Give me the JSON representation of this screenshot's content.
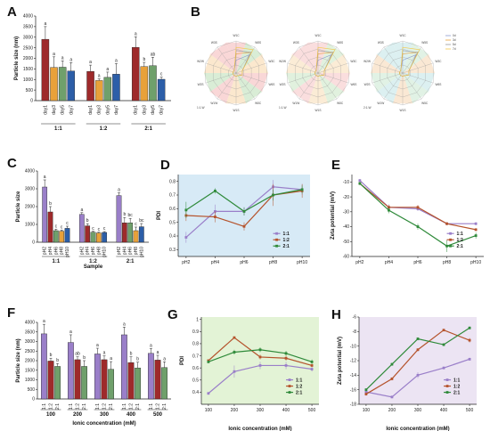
{
  "panels": {
    "A": "A",
    "B": "B",
    "C": "C",
    "D": "D",
    "E": "E",
    "F": "F",
    "G": "G",
    "H": "H"
  },
  "colors": {
    "red": "#9e2a2b",
    "orange": "#e8a13a",
    "green": "#6fa06b",
    "blue": "#2c5ea8",
    "purple": "#9a7fc9",
    "brown": "#b5532c",
    "dgreen": "#2f8a3a"
  },
  "chart_data": [
    {
      "id": "A",
      "type": "bar",
      "ylabel": "Particle size (nm)",
      "ylim": [
        0,
        4000
      ],
      "yticks": [
        0,
        500,
        1000,
        1500,
        2000,
        2500,
        3000,
        3500,
        4000
      ],
      "groups": [
        "1:1",
        "1:2",
        "2:1"
      ],
      "categories": [
        "day1",
        "day3",
        "day5",
        "day7"
      ],
      "values": [
        [
          2900,
          1570,
          1580,
          1400
        ],
        [
          1380,
          950,
          1100,
          1250
        ],
        [
          2520,
          1610,
          1650,
          1010
        ]
      ],
      "errors": [
        [
          600,
          500,
          300,
          400
        ],
        [
          300,
          80,
          250,
          500
        ],
        [
          500,
          200,
          400,
          100
        ]
      ],
      "letters": [
        [
          "a",
          "a",
          "a",
          "a"
        ],
        [
          "a",
          "a",
          "a",
          "a"
        ],
        [
          "a",
          "b",
          "ab",
          "c"
        ]
      ]
    },
    {
      "id": "B",
      "type": "radar",
      "axes": [
        "W1C",
        "W5S",
        "W3C",
        "W6S",
        "W5C",
        "W1S",
        "W1W",
        "W2S",
        "W2W",
        "W3S"
      ],
      "axis_labels": [
        "W1C",
        "W5S",
        "W3C",
        "W6S",
        "W5C",
        "W1S",
        "W1W",
        "W2S",
        "W2W",
        "W3S"
      ],
      "subtitles": [
        "1:1-W",
        "1:1-W",
        "2:1-W"
      ],
      "series_names": [
        "0d",
        "3d",
        "5d",
        "7d"
      ],
      "rlim": [
        0,
        10
      ]
    },
    {
      "id": "C",
      "type": "bar",
      "xlabel": "Sample",
      "ylabel": "Particle size",
      "ylim": [
        0,
        4000
      ],
      "yticks": [
        0,
        1000,
        2000,
        3000,
        4000
      ],
      "groups": [
        "1:1",
        "1:2",
        "2:1"
      ],
      "categories": [
        "pH2",
        "pH4",
        "pH6",
        "pH8",
        "pH10"
      ],
      "values": [
        [
          3100,
          1700,
          650,
          620,
          780
        ],
        [
          1560,
          920,
          560,
          520,
          550
        ],
        [
          2620,
          1090,
          1090,
          650,
          870
        ]
      ],
      "errors": [
        [
          400,
          300,
          80,
          60,
          120
        ],
        [
          100,
          120,
          50,
          40,
          50
        ],
        [
          150,
          300,
          250,
          200,
          180
        ]
      ],
      "letters": [
        [
          "a",
          "b",
          "c",
          "c",
          "c"
        ],
        [
          "a",
          "b",
          "c",
          "c",
          "c"
        ],
        [
          "a",
          "b",
          "bc",
          "c",
          "bc"
        ]
      ]
    },
    {
      "id": "D",
      "type": "line",
      "ylabel": "PDI",
      "ylim": [
        0.25,
        0.85
      ],
      "yticks": [
        0.3,
        0.4,
        0.5,
        0.6,
        0.7,
        0.8
      ],
      "categories": [
        "pH2",
        "pH4",
        "pH6",
        "pH8",
        "pH10"
      ],
      "series": [
        {
          "name": "1:1",
          "values": [
            0.39,
            0.58,
            0.58,
            0.76,
            0.74
          ],
          "err": [
            0.04,
            0.05,
            0.03,
            0.05,
            0.04
          ]
        },
        {
          "name": "1:2",
          "values": [
            0.55,
            0.54,
            0.47,
            0.7,
            0.73
          ],
          "err": [
            0.04,
            0.04,
            0.03,
            0.08,
            0.05
          ]
        },
        {
          "name": "2:1",
          "values": [
            0.59,
            0.73,
            0.58,
            0.7,
            0.74
          ],
          "err": [
            0.06,
            0.02,
            0.03,
            0.04,
            0.03
          ]
        }
      ]
    },
    {
      "id": "E",
      "type": "line",
      "ylabel": "Zeta potential (mV)",
      "ylim": [
        -60,
        -5
      ],
      "yticks": [
        -10,
        -20,
        -30,
        -40,
        -50,
        -60
      ],
      "categories": [
        "pH2",
        "pH4",
        "pH6",
        "pH8",
        "pH10"
      ],
      "series": [
        {
          "name": "1:1",
          "values": [
            -9,
            -27,
            -28,
            -38,
            -38
          ],
          "err": [
            1,
            2,
            1.5,
            1,
            1
          ]
        },
        {
          "name": "1:2",
          "values": [
            -11,
            -27,
            -27,
            -38,
            -42
          ],
          "err": [
            1,
            1.5,
            1.5,
            1,
            1
          ]
        },
        {
          "name": "2:1",
          "values": [
            -11,
            -29,
            -40,
            -53,
            -46
          ],
          "err": [
            1,
            2,
            2,
            4,
            2
          ]
        }
      ]
    },
    {
      "id": "F",
      "type": "bar",
      "xlabel": "Ionic concentration (mM)",
      "ylabel": "Particle size (nm)",
      "ylim": [
        0,
        4000
      ],
      "yticks": [
        0,
        500,
        1000,
        1500,
        2000,
        2500,
        3000,
        3500,
        4000
      ],
      "groups": [
        "100",
        "200",
        "300",
        "400",
        "500"
      ],
      "categories": [
        "1:1",
        "1:2",
        "2:1"
      ],
      "values": [
        [
          3400,
          1980,
          1700
        ],
        [
          2950,
          2050,
          1700
        ],
        [
          2350,
          2050,
          1550
        ],
        [
          3350,
          1900,
          1620
        ],
        [
          2380,
          2030,
          1640
        ]
      ],
      "errors": [
        [
          500,
          150,
          150
        ],
        [
          400,
          150,
          300
        ],
        [
          300,
          200,
          400
        ],
        [
          400,
          300,
          300
        ],
        [
          250,
          250,
          300
        ]
      ],
      "letters": [
        [
          "a",
          "b",
          "b"
        ],
        [
          "a",
          "ab",
          "b"
        ],
        [
          "a",
          "a",
          "a"
        ],
        [
          "a",
          "b",
          "b"
        ],
        [
          "a",
          "a",
          "a"
        ]
      ]
    },
    {
      "id": "G",
      "type": "line",
      "xlabel": "Ionic concentration (mM)",
      "ylabel": "PDI",
      "ylim": [
        0.3,
        1.02
      ],
      "yticks": [
        0.4,
        0.5,
        0.6,
        0.7,
        0.8,
        0.9,
        1.0
      ],
      "x": [
        100,
        200,
        300,
        400,
        500
      ],
      "series": [
        {
          "name": "1:1",
          "values": [
            0.39,
            0.57,
            0.62,
            0.62,
            0.59
          ],
          "err": [
            0.01,
            0.05,
            0.03,
            0.03,
            0.02
          ]
        },
        {
          "name": "1:2",
          "values": [
            0.66,
            0.85,
            0.69,
            0.68,
            0.62
          ],
          "err": [
            0.01,
            0.01,
            0.02,
            0.02,
            0.01
          ]
        },
        {
          "name": "2:1",
          "values": [
            0.65,
            0.73,
            0.75,
            0.72,
            0.65
          ],
          "err": [
            0.01,
            0.02,
            0.02,
            0.02,
            0.02
          ]
        }
      ]
    },
    {
      "id": "H",
      "type": "line",
      "xlabel": "Ionic concentration (mM)",
      "ylabel": "Zeta potential (mV)",
      "ylim": [
        -18,
        -6
      ],
      "yticks": [
        -6,
        -8,
        -10,
        -12,
        -14,
        -16,
        -18
      ],
      "x": [
        100,
        200,
        300,
        400,
        500
      ],
      "series": [
        {
          "name": "1:1",
          "values": [
            -16.3,
            -17.0,
            -14.0,
            -13.0,
            -11.8
          ],
          "err": [
            0.2,
            0.2,
            0.4,
            0.2,
            0.2
          ]
        },
        {
          "name": "1:2",
          "values": [
            -16.6,
            -14.5,
            -10.5,
            -7.8,
            -9.2
          ],
          "err": [
            0.2,
            0.2,
            0.2,
            0.1,
            0.3
          ]
        },
        {
          "name": "2:1",
          "values": [
            -16.0,
            -12.5,
            -9.0,
            -9.8,
            -7.5
          ],
          "err": [
            0.2,
            0.2,
            0.2,
            0.2,
            0.2
          ]
        }
      ]
    }
  ]
}
